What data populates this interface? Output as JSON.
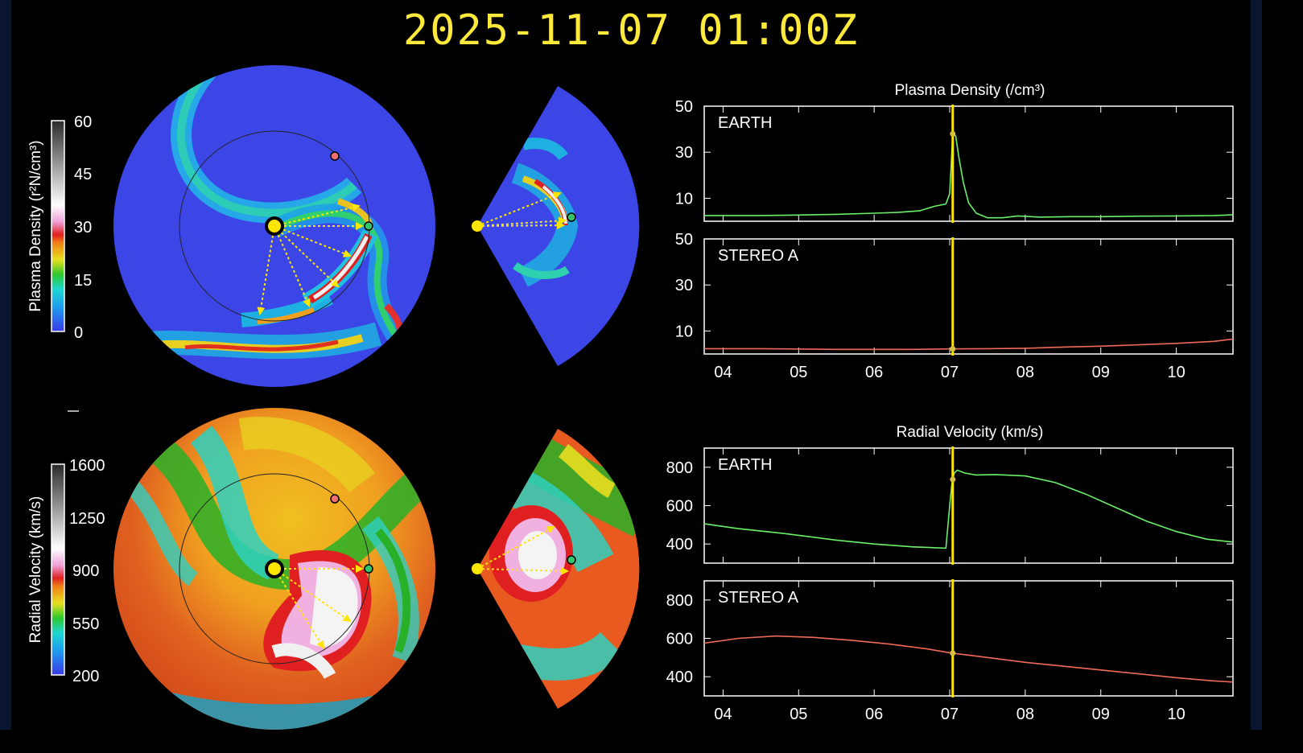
{
  "header": {
    "timestamp": "2025-11-07  01:00Z"
  },
  "colorbars": {
    "density": {
      "label": "Plasma Density (r²N/cm³)",
      "ticks": [
        "60",
        "45",
        "30",
        "15",
        "0"
      ],
      "range": [
        0,
        60
      ]
    },
    "velocity": {
      "label": "Radial Velocity (km/s)",
      "ticks": [
        "1600",
        "1250",
        "900",
        "550",
        "200"
      ],
      "range": [
        200,
        1600
      ]
    }
  },
  "colors": {
    "title": "#ffe93a",
    "earth_series": "#6bf06b",
    "stereo_series": "#f06a5a",
    "time_marker": "#ffe600",
    "arrow": "#ffe600",
    "earth_marker": "#33c46a",
    "stereo_marker": "#f07070",
    "sun": "#ffe600"
  },
  "chart_data": [
    {
      "type": "line",
      "title": "Plasma Density (/cm³)",
      "panel": "EARTH",
      "ylim": [
        0,
        50
      ],
      "yticks": [
        "50",
        "30",
        "10"
      ],
      "xlim": [
        3.75,
        10.75
      ],
      "xticks": [
        "04",
        "05",
        "06",
        "07",
        "08",
        "09",
        "10"
      ],
      "current_x": 7.04,
      "series": [
        {
          "name": "EARTH",
          "color": "#6bf06b",
          "x": [
            3.75,
            4.5,
            5.0,
            5.5,
            6.0,
            6.3,
            6.6,
            6.8,
            6.95,
            7.0,
            7.04,
            7.08,
            7.12,
            7.18,
            7.25,
            7.35,
            7.5,
            7.7,
            7.9,
            8.2,
            8.6,
            9.0,
            9.5,
            10.0,
            10.5,
            10.75
          ],
          "y": [
            2.5,
            2.5,
            2.7,
            3.0,
            3.5,
            3.8,
            4.5,
            6.5,
            7.5,
            12,
            38,
            37,
            28,
            17,
            8,
            3.5,
            1.5,
            1.5,
            2.3,
            1.8,
            2.0,
            2.0,
            2.2,
            2.3,
            2.5,
            2.8
          ]
        }
      ]
    },
    {
      "type": "line",
      "panel": "STEREO A",
      "ylim": [
        0,
        50
      ],
      "yticks": [
        "50",
        "30",
        "10"
      ],
      "xlim": [
        3.75,
        10.75
      ],
      "xticks": [
        "04",
        "05",
        "06",
        "07",
        "08",
        "09",
        "10"
      ],
      "current_x": 7.04,
      "series": [
        {
          "name": "STEREO A",
          "color": "#f06a5a",
          "x": [
            3.75,
            4.5,
            5.5,
            6.5,
            7.0,
            7.5,
            8.0,
            8.5,
            9.0,
            9.5,
            10.0,
            10.5,
            10.75
          ],
          "y": [
            2.3,
            2.3,
            2.0,
            2.0,
            2.2,
            2.3,
            2.5,
            3.0,
            3.4,
            4.0,
            4.6,
            5.5,
            6.5
          ]
        }
      ]
    },
    {
      "type": "line",
      "title": "Radial Velocity (km/s)",
      "panel": "EARTH",
      "ylim": [
        300,
        900
      ],
      "yticks": [
        "800",
        "600",
        "400"
      ],
      "xlim": [
        3.75,
        10.75
      ],
      "xticks": [
        "04",
        "05",
        "06",
        "07",
        "08",
        "09",
        "10"
      ],
      "current_x": 7.04,
      "series": [
        {
          "name": "EARTH",
          "color": "#6bf06b",
          "x": [
            3.75,
            4.2,
            4.8,
            5.5,
            6.0,
            6.5,
            6.95,
            7.0,
            7.03,
            7.06,
            7.1,
            7.2,
            7.35,
            7.6,
            8.0,
            8.4,
            8.8,
            9.2,
            9.6,
            10.0,
            10.4,
            10.75
          ],
          "y": [
            505,
            480,
            455,
            420,
            400,
            385,
            378,
            600,
            720,
            770,
            785,
            770,
            760,
            762,
            755,
            720,
            660,
            590,
            520,
            465,
            425,
            410
          ]
        }
      ]
    },
    {
      "type": "line",
      "panel": "STEREO A",
      "ylim": [
        300,
        900
      ],
      "yticks": [
        "800",
        "600",
        "400"
      ],
      "xlim": [
        3.75,
        10.75
      ],
      "xticks": [
        "04",
        "05",
        "06",
        "07",
        "08",
        "09",
        "10"
      ],
      "current_x": 7.04,
      "series": [
        {
          "name": "STEREO A",
          "color": "#f06a5a",
          "x": [
            3.75,
            4.2,
            4.7,
            5.2,
            5.7,
            6.2,
            6.7,
            7.0,
            7.5,
            8.0,
            8.5,
            9.0,
            9.5,
            10.0,
            10.5,
            10.75
          ],
          "y": [
            575,
            600,
            612,
            605,
            590,
            570,
            545,
            525,
            500,
            475,
            455,
            435,
            415,
            395,
            378,
            372
          ]
        }
      ]
    }
  ]
}
